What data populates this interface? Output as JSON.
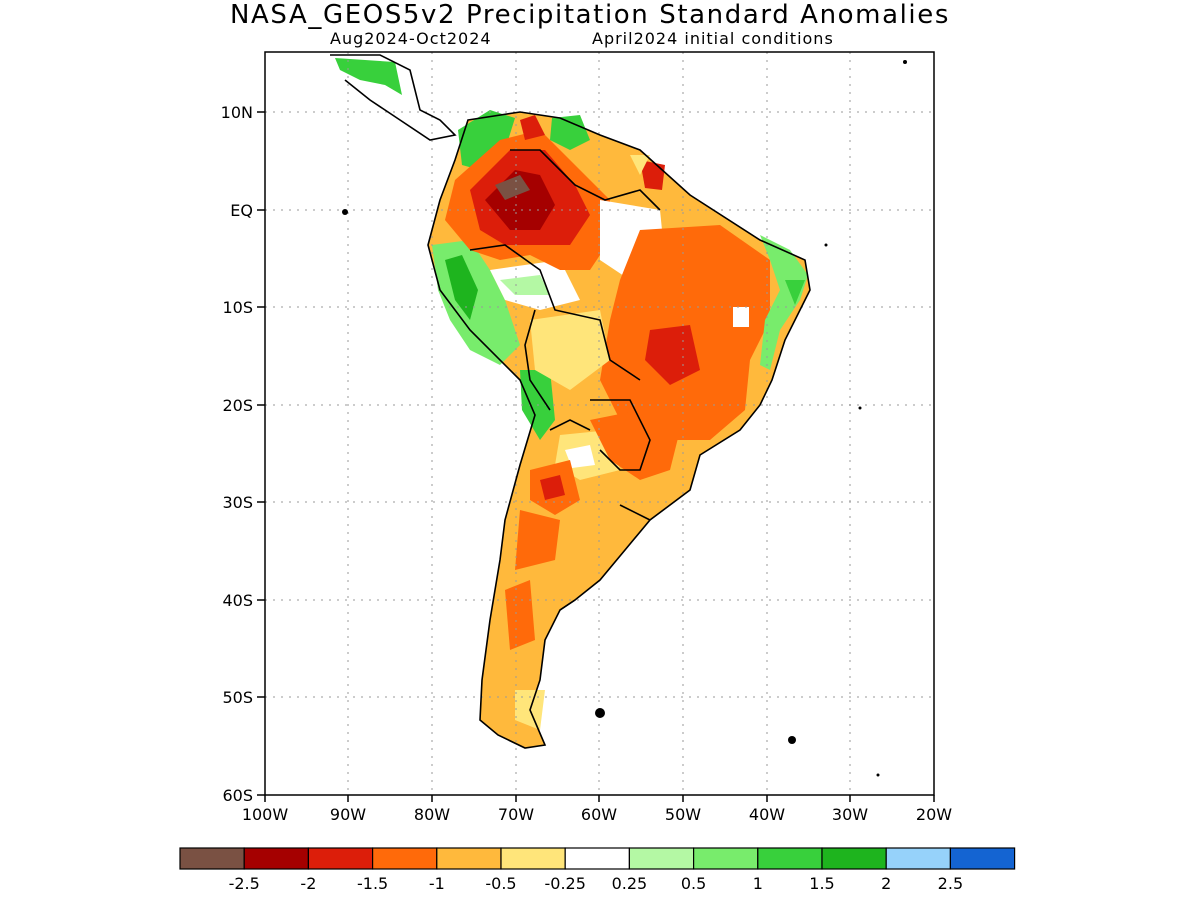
{
  "title": "NASA_GEOS5v2 Precipitation Standard Anomalies",
  "subtitle_left": "Aug2024-Oct2024",
  "subtitle_right": "April2024 initial conditions",
  "axes": {
    "lat_labels": [
      "10N",
      "EQ",
      "10S",
      "20S",
      "30S",
      "40S",
      "50S",
      "60S"
    ],
    "lon_labels": [
      "100W",
      "90W",
      "80W",
      "70W",
      "60W",
      "50W",
      "40W",
      "30W",
      "20W"
    ]
  },
  "colorbar": {
    "colors": [
      "#7a5143",
      "#a50000",
      "#dc1e0a",
      "#ff6a0a",
      "#ffb93c",
      "#ffe57a",
      "#ffffff",
      "#b4f8a4",
      "#78ec6c",
      "#38d03c",
      "#1eb41e",
      "#96d2fa",
      "#1464d2"
    ],
    "labels": [
      "-2.5",
      "-2",
      "-1.5",
      "-1",
      "-0.5",
      "-0.25",
      "0.25",
      "0.5",
      "1",
      "1.5",
      "2",
      "2.5"
    ]
  }
}
